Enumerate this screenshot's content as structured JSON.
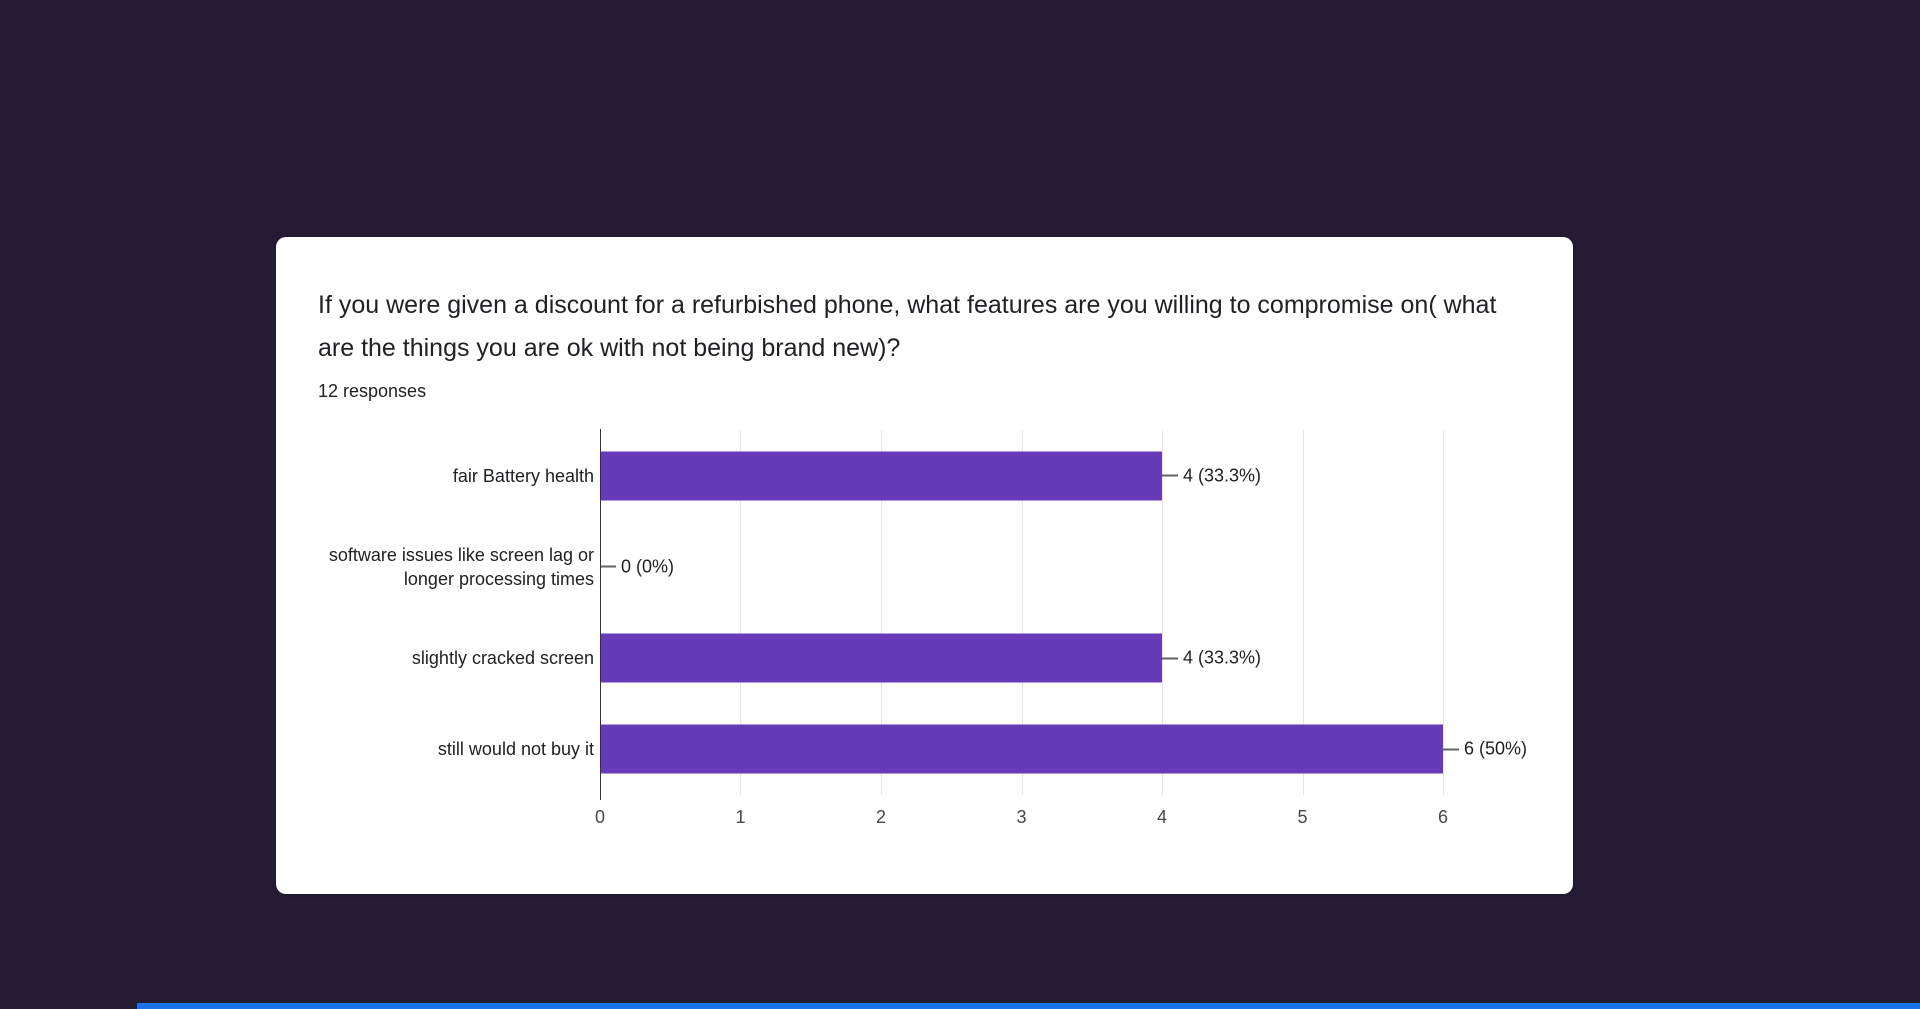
{
  "colors": {
    "page_background": "#251c34",
    "bar": "#673ab7",
    "bottom_strip": "#1a73e8"
  },
  "card": {
    "title": "If you were given a discount for a refurbished phone, what features are you willing to compromise on( what are the things you are ok with not being brand new)?",
    "responses_label": "12 responses"
  },
  "chart_data": {
    "type": "bar",
    "orientation": "horizontal",
    "title": "",
    "xlabel": "",
    "ylabel": "",
    "categories": [
      "fair Battery health",
      "software issues like screen lag or longer processing times",
      "slightly cracked screen",
      "still would not buy it"
    ],
    "values": [
      4,
      0,
      4,
      6
    ],
    "data_labels": [
      "4 (33.3%)",
      "0 (0%)",
      "4 (33.3%)",
      "6 (50%)"
    ],
    "x_ticks": [
      0,
      1,
      2,
      3,
      4,
      5,
      6
    ],
    "xlim": [
      0,
      6
    ],
    "grid": true,
    "legend_position": "none",
    "bar_color": "#673ab7"
  }
}
